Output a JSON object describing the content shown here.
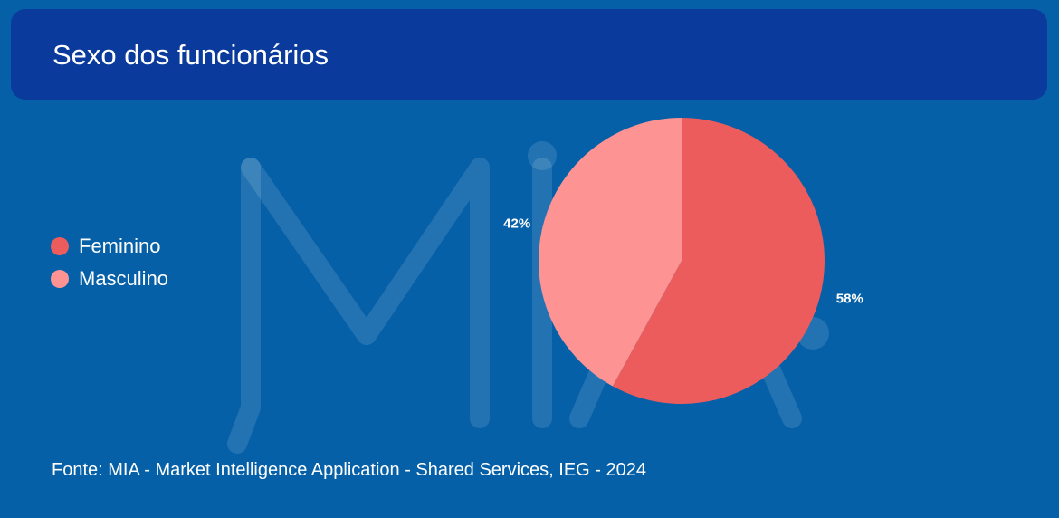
{
  "header": {
    "title": "Sexo dos funcionários"
  },
  "watermark": {
    "text": "MIA"
  },
  "colors": {
    "background": "#0560a8",
    "header": "#0a3b9c",
    "feminino": "#ec5c5c",
    "masculino": "#fe9393"
  },
  "chart_data": {
    "type": "pie",
    "title": "Sexo dos funcionários",
    "legend_position": "left",
    "series": [
      {
        "name": "Feminino",
        "value": 58,
        "label": "58%",
        "color": "#ec5c5c"
      },
      {
        "name": "Masculino",
        "value": 42,
        "label": "42%",
        "color": "#fe9393"
      }
    ]
  },
  "footer": {
    "source": "Fonte: MIA - Market Intelligence Application - Shared Services, IEG - 2024"
  }
}
